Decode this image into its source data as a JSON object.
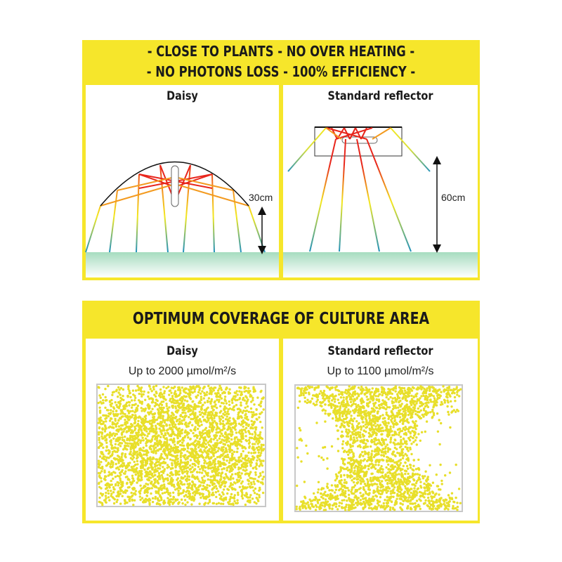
{
  "top_panel": {
    "header_line1": "- CLOSE TO PLANTS - NO OVER HEATING -",
    "header_line2": "- NO PHOTONS LOSS - 100% EFFICIENCY -",
    "left": {
      "title": "Daisy",
      "distance": "30cm"
    },
    "right": {
      "title": "Standard reflector",
      "distance": "60cm"
    }
  },
  "bottom_panel": {
    "header": "OPTIMUM COVERAGE OF CULTURE AREA",
    "left": {
      "title": "Daisy",
      "subtitle": "Up to 2000 µmol/m²/s"
    },
    "right": {
      "title": "Standard reflector",
      "subtitle": "Up to 1100 µmol/m²/s"
    }
  },
  "colors": {
    "panel": "#f6e62b",
    "dot": "#e8df2a",
    "ray_hot": "#e8261c",
    "ray_mid": "#f3e81f",
    "ray_cool": "#1a8fc0",
    "ground": "#a6dcbf"
  }
}
